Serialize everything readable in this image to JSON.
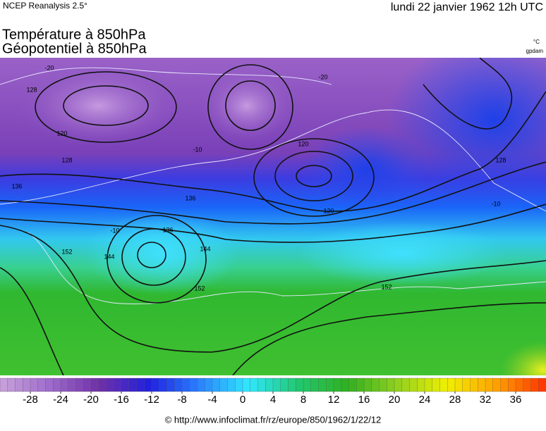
{
  "header": {
    "source": "NCEP Reanalysis 2.5°",
    "date": "lundi 22 janvier 1962 12h UTC"
  },
  "titles": [
    "Température à 850hPa",
    "Géopotentiel à 850hPa"
  ],
  "units": [
    "°C",
    "gpdam"
  ],
  "contour_labels": [
    "128",
    "120",
    "128",
    "136",
    "120",
    "120",
    "136",
    "144",
    "152",
    "152",
    "136",
    "128",
    "152",
    "-10",
    "-20",
    "-20",
    "-10",
    "-10",
    "144"
  ],
  "colorbar": {
    "range": [
      -32,
      40
    ],
    "ticks": [
      -28,
      -24,
      -20,
      -16,
      -12,
      -8,
      -4,
      0,
      4,
      8,
      12,
      16,
      20,
      24,
      28,
      32,
      36
    ],
    "colors": [
      "#c9a2dc",
      "#9e6ccc",
      "#7030a8",
      "#2020e0",
      "#2a80ff",
      "#30e8ff",
      "#20c870",
      "#30b020",
      "#90d020",
      "#f0f000",
      "#ffa000",
      "#ff3000"
    ]
  },
  "footer": "© http://www.infoclimat.fr/rz/europe/850/1962/1/22/12"
}
